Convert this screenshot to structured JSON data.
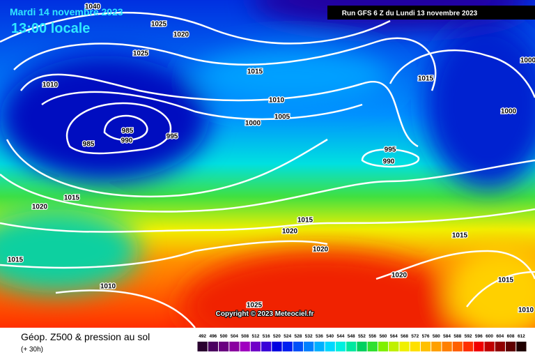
{
  "header": {
    "date": "Mardi 14 novembre 2023",
    "time": "13:00 locale",
    "run": "Run GFS 6 Z du Lundi 13 novembre 2023"
  },
  "isobar_labels": [
    "1040",
    "1025",
    "1020",
    "1025",
    "1015",
    "1010",
    "1010",
    "1015",
    "1000",
    "985",
    "990",
    "985",
    "995",
    "1000",
    "1005",
    "995",
    "990",
    "1015",
    "1020",
    "1015",
    "1020",
    "1015",
    "1020",
    "1015",
    "1010",
    "1020",
    "1015",
    "1025",
    "1010",
    "1000"
  ],
  "copyright": "Copyright © 2023 Meteociel.fr",
  "footer": {
    "title": "Géop. Z500 & pression au sol",
    "step": "(+ 30h)"
  },
  "legend": {
    "values": [
      492,
      496,
      500,
      504,
      508,
      512,
      516,
      520,
      524,
      528,
      532,
      536,
      540,
      544,
      548,
      552,
      556,
      560,
      564,
      568,
      572,
      576,
      580,
      584,
      588,
      592,
      596,
      600,
      604,
      608,
      612
    ],
    "colors": [
      "#2a0030",
      "#4b0060",
      "#6a0080",
      "#8a00a0",
      "#a000c0",
      "#7000c8",
      "#3a00d8",
      "#0000e0",
      "#0020f0",
      "#0050f8",
      "#0080ff",
      "#00b0ff",
      "#00d8ff",
      "#00f0e0",
      "#00e8a0",
      "#00d060",
      "#30e030",
      "#80f000",
      "#c0f000",
      "#f0f000",
      "#ffe000",
      "#ffc000",
      "#ffa000",
      "#ff8000",
      "#ff6000",
      "#ff3000",
      "#f00000",
      "#c00000",
      "#900000",
      "#600000",
      "#200000"
    ]
  }
}
